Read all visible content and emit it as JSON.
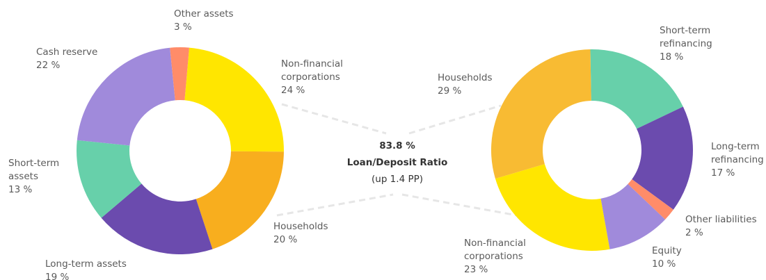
{
  "chart_data": [
    {
      "type": "pie",
      "categories": [
        [
          "Non-financial",
          "corporations"
        ],
        [
          "Households"
        ],
        [
          "Long-term assets"
        ],
        [
          "Short-term",
          "assets"
        ],
        [
          "Cash reserve"
        ],
        [
          "Other assets"
        ]
      ],
      "values": [
        24,
        20,
        19,
        13,
        22,
        3
      ],
      "value_labels": [
        "24 %",
        "20 %",
        "19 %",
        "13 %",
        "22 %",
        "3 %"
      ],
      "colors": [
        "#ffe600",
        "#f8ae1e",
        "#6b4bae",
        "#67d0aa",
        "#a08adb",
        "#ff8c69"
      ]
    },
    {
      "type": "pie",
      "categories": [
        [
          "Short-term",
          "refinancing"
        ],
        [
          "Long-term",
          "refinancing"
        ],
        [
          "Other liabilities"
        ],
        [
          "Equity"
        ],
        [
          "Non-financial",
          "corporations"
        ],
        [
          "Households"
        ]
      ],
      "values": [
        18,
        17,
        2,
        10,
        23,
        29
      ],
      "value_labels": [
        "18 %",
        "17 %",
        "2 %",
        "10 %",
        "23 %",
        "29 %"
      ],
      "colors": [
        "#67d0aa",
        "#6b4bae",
        "#ff8c69",
        "#a08adb",
        "#ffe600",
        "#f8bb33"
      ]
    }
  ],
  "center": {
    "value": "83.8 %",
    "label": "Loan/Deposit Ratio",
    "change": "(up 1.4 PP)"
  }
}
